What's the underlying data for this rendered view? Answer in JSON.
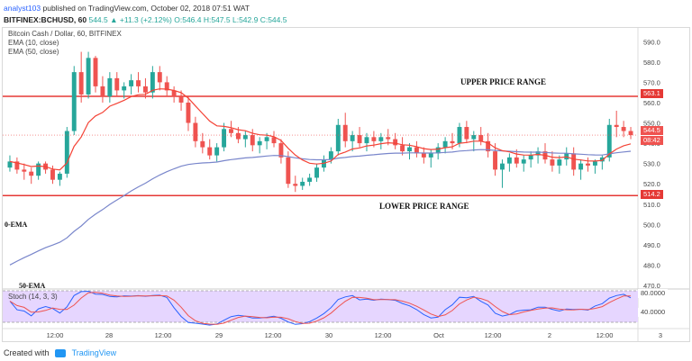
{
  "header": {
    "author": "analyst103",
    "published_text": "published on TradingView.com, October 02, 2018 07:51 WAT"
  },
  "symbol_line": {
    "symbol": "BITFINEX:BCHUSD, 60",
    "last": "544.5",
    "change": "▲ +11.3 (+2.12%)",
    "ohlc": "O:546.4 H:547.5 L:542.9 C:544.5"
  },
  "legend": {
    "title": "Bitcoin Cash / Dollar, 60, BITFINEX",
    "ema10": "EMA (10, close)",
    "ema50": "EMA (50, close)"
  },
  "annotations": {
    "upper": "UPPER PRICE RANGE",
    "lower": "LOWER PRICE RANGE",
    "ema10": "0-EMA",
    "ema50": "50-EMA"
  },
  "price_tags": {
    "upper": "563.1",
    "last": "544.5",
    "countdown": "08:42",
    "lower": "514.2"
  },
  "stoch": {
    "title": "Stoch (14, 3, 3)",
    "upper_tag": "80.0000",
    "lower_tag": "40.0000"
  },
  "footer": {
    "created_with": "Created with",
    "brand": "TradingView"
  },
  "colors": {
    "up": "#26a69a",
    "down": "#ef5350",
    "range_line": "#e53935",
    "ema10": "#f44336",
    "ema50": "#7986cb",
    "stoch_fill": "#e6d6ff"
  },
  "chart_data": {
    "type": "candlestick",
    "ylim": [
      470,
      595
    ],
    "yticks": [
      470,
      480,
      490,
      500,
      510,
      520,
      530,
      540,
      550,
      560,
      570,
      580,
      590
    ],
    "ytick_labels": [
      "470.0",
      "480.0",
      "490.0",
      "500.0",
      "510.0",
      "520.0",
      "530.0",
      "540.0",
      "550.0",
      "560.0",
      "570.0",
      "580.0",
      "590.0"
    ],
    "xticks": [
      "12:00",
      "28",
      "12:00",
      "29",
      "12:00",
      "30",
      "12:00",
      "Oct",
      "12:00",
      "2",
      "12:00",
      "3"
    ],
    "upper_range": 563.1,
    "lower_range": 514.2,
    "candles": [
      [
        528,
        534,
        526,
        531
      ],
      [
        531,
        533,
        525,
        527
      ],
      [
        527,
        530,
        522,
        526
      ],
      [
        526,
        528,
        520,
        524
      ],
      [
        524,
        531,
        522,
        530
      ],
      [
        530,
        531,
        525,
        527
      ],
      [
        527,
        529,
        520,
        522
      ],
      [
        522,
        526,
        519,
        525
      ],
      [
        525,
        548,
        523,
        546
      ],
      [
        546,
        578,
        544,
        575
      ],
      [
        575,
        585,
        560,
        564
      ],
      [
        564,
        585,
        562,
        582
      ],
      [
        582,
        583,
        565,
        568
      ],
      [
        568,
        573,
        560,
        563
      ],
      [
        563,
        575,
        560,
        572
      ],
      [
        572,
        575,
        563,
        566
      ],
      [
        566,
        570,
        562,
        568
      ],
      [
        568,
        574,
        564,
        571
      ],
      [
        571,
        575,
        565,
        568
      ],
      [
        568,
        572,
        562,
        565
      ],
      [
        565,
        578,
        562,
        575
      ],
      [
        575,
        578,
        566,
        570
      ],
      [
        570,
        573,
        563,
        566
      ],
      [
        566,
        568,
        560,
        563
      ],
      [
        563,
        566,
        556,
        560
      ],
      [
        560,
        563,
        546,
        550
      ],
      [
        550,
        553,
        538,
        541
      ],
      [
        541,
        545,
        535,
        538
      ],
      [
        538,
        542,
        532,
        534
      ],
      [
        534,
        540,
        531,
        538
      ],
      [
        538,
        550,
        536,
        547
      ],
      [
        547,
        551,
        543,
        545
      ],
      [
        545,
        548,
        540,
        542
      ],
      [
        542,
        546,
        538,
        544
      ],
      [
        544,
        547,
        536,
        539
      ],
      [
        539,
        543,
        535,
        541
      ],
      [
        541,
        545,
        537,
        543
      ],
      [
        543,
        546,
        538,
        540
      ],
      [
        540,
        542,
        530,
        533
      ],
      [
        533,
        536,
        518,
        520
      ],
      [
        520,
        524,
        516,
        519
      ],
      [
        519,
        523,
        517,
        521
      ],
      [
        521,
        525,
        519,
        523
      ],
      [
        523,
        530,
        521,
        528
      ],
      [
        528,
        534,
        526,
        532
      ],
      [
        532,
        538,
        530,
        536
      ],
      [
        536,
        552,
        534,
        549
      ],
      [
        549,
        555,
        538,
        541
      ],
      [
        541,
        546,
        536,
        544
      ],
      [
        544,
        548,
        538,
        540
      ],
      [
        540,
        545,
        536,
        543
      ],
      [
        543,
        546,
        538,
        541
      ],
      [
        541,
        545,
        537,
        543
      ],
      [
        543,
        547,
        539,
        542
      ],
      [
        542,
        545,
        537,
        539
      ],
      [
        539,
        543,
        534,
        536
      ],
      [
        536,
        540,
        532,
        538
      ],
      [
        538,
        541,
        533,
        535
      ],
      [
        535,
        538,
        530,
        533
      ],
      [
        533,
        537,
        528,
        535
      ],
      [
        535,
        540,
        532,
        538
      ],
      [
        538,
        543,
        535,
        541
      ],
      [
        541,
        545,
        537,
        540
      ],
      [
        540,
        550,
        538,
        548
      ],
      [
        548,
        551,
        540,
        542
      ],
      [
        542,
        546,
        536,
        544
      ],
      [
        544,
        548,
        539,
        541
      ],
      [
        541,
        545,
        533,
        536
      ],
      [
        536,
        540,
        524,
        527
      ],
      [
        527,
        532,
        518,
        530
      ],
      [
        530,
        535,
        526,
        533
      ],
      [
        533,
        537,
        528,
        530
      ],
      [
        530,
        534,
        526,
        532
      ],
      [
        532,
        536,
        528,
        534
      ],
      [
        534,
        538,
        530,
        536
      ],
      [
        536,
        540,
        530,
        532
      ],
      [
        532,
        536,
        526,
        529
      ],
      [
        529,
        534,
        525,
        532
      ],
      [
        532,
        538,
        529,
        535
      ],
      [
        535,
        538,
        524,
        527
      ],
      [
        527,
        532,
        522,
        530
      ],
      [
        530,
        533,
        526,
        529
      ],
      [
        529,
        532,
        525,
        531
      ],
      [
        531,
        534,
        527,
        533
      ],
      [
        533,
        552,
        531,
        549
      ],
      [
        549,
        556,
        543,
        548
      ],
      [
        548,
        551,
        543,
        546
      ],
      [
        546,
        548,
        542,
        544
      ]
    ]
  }
}
